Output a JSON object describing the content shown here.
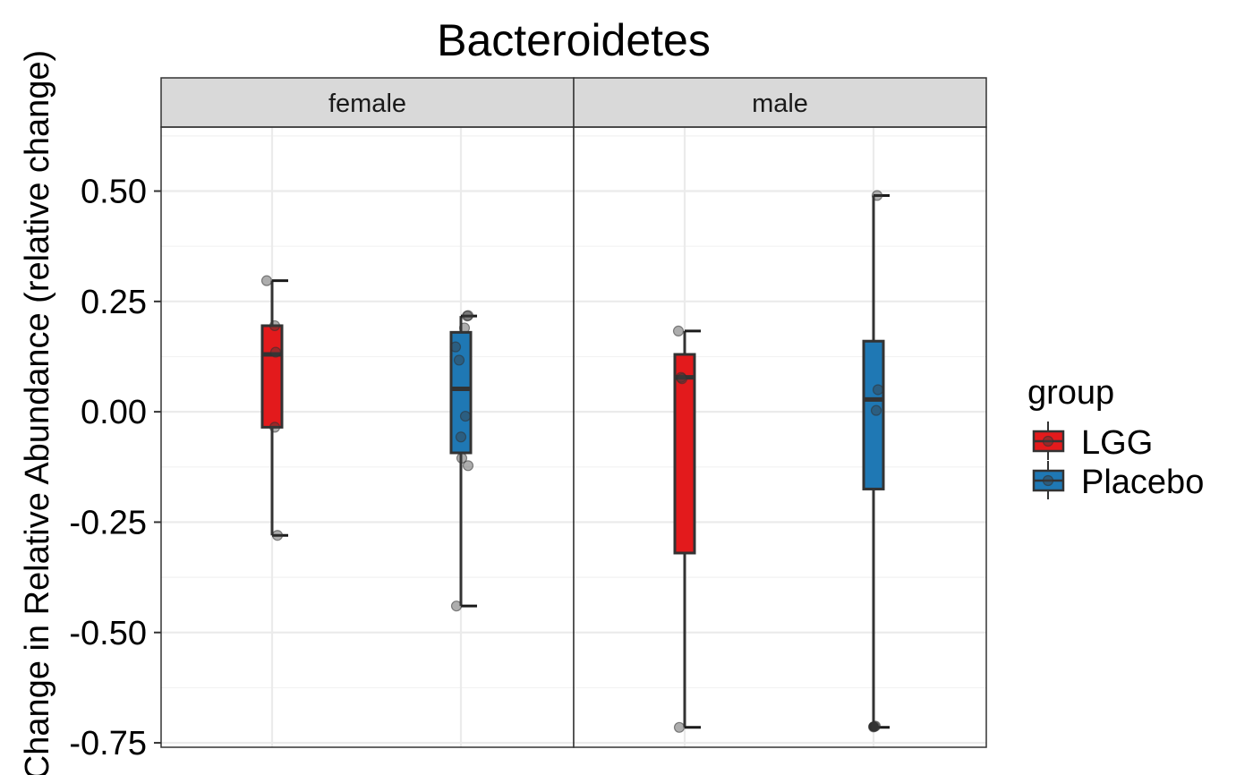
{
  "chart_data": {
    "type": "boxplot",
    "title": "Bacteroidetes",
    "ylabel": "Change in Relative Abundance (relative change)",
    "xlabel": "",
    "ylim": [
      -0.76,
      0.645
    ],
    "y_ticks": [
      0.5,
      0.25,
      0.0,
      -0.25,
      -0.5,
      -0.75
    ],
    "y_tick_labels": [
      "0.50",
      "0.25",
      "0.00",
      "-0.25",
      "-0.50",
      "-0.75"
    ],
    "grid": true,
    "facets": [
      "female",
      "male"
    ],
    "groups": [
      "LGG",
      "Placebo"
    ],
    "legend": {
      "title": "group",
      "position": "right",
      "items": [
        {
          "label": "LGG",
          "color": "#e31a1c"
        },
        {
          "label": "Placebo",
          "color": "#1f78b4"
        }
      ]
    },
    "series": [
      {
        "facet": "female",
        "group": "LGG",
        "color": "#e31a1c",
        "box": {
          "min": -0.28,
          "q1": -0.035,
          "median": 0.13,
          "q3": 0.195,
          "max": 0.297
        },
        "points": [
          [
            -0.03,
            0.297
          ],
          [
            0.015,
            0.195
          ],
          [
            0.02,
            0.135
          ],
          [
            0.015,
            -0.035
          ],
          [
            0.03,
            -0.28
          ]
        ]
      },
      {
        "facet": "female",
        "group": "Placebo",
        "color": "#1f78b4",
        "box": {
          "min": -0.44,
          "q1": -0.093,
          "median": 0.052,
          "q3": 0.18,
          "max": 0.217
        },
        "points": [
          [
            0.035,
            0.217
          ],
          [
            0.04,
            0.218
          ],
          [
            0.02,
            0.19
          ],
          [
            -0.03,
            0.147
          ],
          [
            -0.01,
            0.117
          ],
          [
            0.025,
            -0.01
          ],
          [
            0.0,
            -0.057
          ],
          [
            0.005,
            -0.105
          ],
          [
            0.04,
            -0.122
          ],
          [
            -0.025,
            -0.44
          ]
        ]
      },
      {
        "facet": "male",
        "group": "LGG",
        "color": "#e31a1c",
        "box": {
          "min": -0.715,
          "q1": -0.32,
          "median": 0.078,
          "q3": 0.13,
          "max": 0.183
        },
        "points": [
          [
            -0.035,
            0.183
          ],
          [
            -0.02,
            0.078
          ],
          [
            -0.015,
            0.075
          ],
          [
            -0.03,
            -0.715
          ]
        ]
      },
      {
        "facet": "male",
        "group": "Placebo",
        "color": "#1f78b4",
        "box": {
          "min": -0.715,
          "q1": -0.175,
          "median": 0.028,
          "q3": 0.16,
          "max": 0.49
        },
        "points": [
          [
            0.02,
            0.49
          ],
          [
            0.025,
            0.05
          ],
          [
            0.015,
            0.003
          ],
          [
            0.005,
            -0.713
          ],
          [
            0.0,
            -0.714
          ],
          [
            0.01,
            -0.712
          ]
        ],
        "outliers": [
          -0.713
        ]
      }
    ]
  }
}
